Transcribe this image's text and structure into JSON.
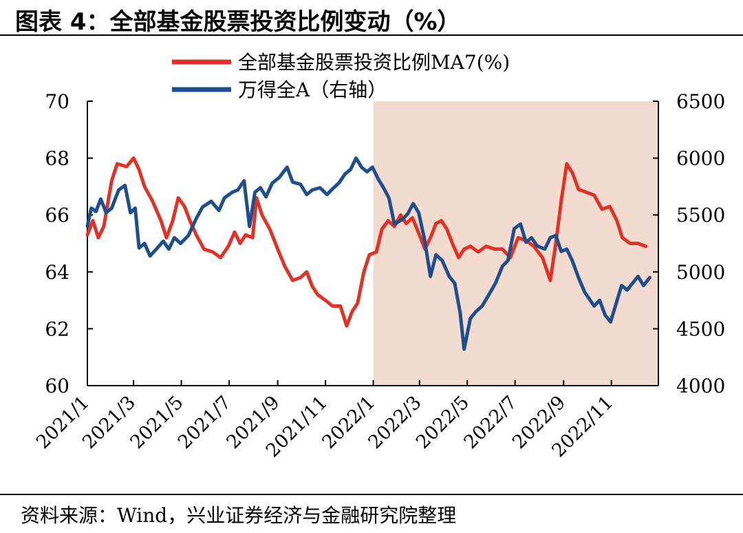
{
  "figure": {
    "title": "图表 4：全部基金股票投资比例变动（%）",
    "source": "资料来源：Wind，兴业证券经济与金融研究院整理"
  },
  "chart_data": {
    "type": "line",
    "title": "",
    "xlabel": "",
    "ylabel_left": "",
    "ylabel_right": "",
    "x_range": [
      "2021-01-01",
      "2022-12-31"
    ],
    "x_ticks": [
      "2021/1",
      "2021/3",
      "2021/5",
      "2021/7",
      "2021/9",
      "2021/11",
      "2022/1",
      "2022/3",
      "2022/5",
      "2022/7",
      "2022/9",
      "2022/11"
    ],
    "y_left": {
      "range": [
        60,
        70
      ],
      "ticks": [
        "60",
        "62",
        "64",
        "66",
        "68",
        "70"
      ]
    },
    "y_right": {
      "range": [
        4000,
        6500
      ],
      "ticks": [
        "4000",
        "4500",
        "5000",
        "5500",
        "6000",
        "6500"
      ]
    },
    "highlight_region": {
      "from": "2022-01-01",
      "to": "2022-12-31",
      "color": "#f3dccf"
    },
    "legend": {
      "position": "top"
    },
    "series": [
      {
        "name": "全部基金股票投资比例MA7(%)",
        "axis": "left",
        "color": "#e23228",
        "points": [
          [
            "2021-01-01",
            65.3
          ],
          [
            "2021-01-08",
            65.8
          ],
          [
            "2021-01-15",
            65.2
          ],
          [
            "2021-01-22",
            65.6
          ],
          [
            "2021-02-01",
            67.2
          ],
          [
            "2021-02-08",
            67.8
          ],
          [
            "2021-02-20",
            67.7
          ],
          [
            "2021-03-01",
            68.0
          ],
          [
            "2021-03-08",
            67.6
          ],
          [
            "2021-03-15",
            67.0
          ],
          [
            "2021-03-25",
            66.5
          ],
          [
            "2021-04-05",
            65.8
          ],
          [
            "2021-04-12",
            65.2
          ],
          [
            "2021-04-20",
            65.8
          ],
          [
            "2021-04-27",
            66.6
          ],
          [
            "2021-05-05",
            66.3
          ],
          [
            "2021-05-12",
            65.8
          ],
          [
            "2021-05-20",
            65.3
          ],
          [
            "2021-05-30",
            64.8
          ],
          [
            "2021-06-10",
            64.7
          ],
          [
            "2021-06-20",
            64.5
          ],
          [
            "2021-06-30",
            64.9
          ],
          [
            "2021-07-08",
            65.4
          ],
          [
            "2021-07-15",
            65.0
          ],
          [
            "2021-07-22",
            65.3
          ],
          [
            "2021-07-31",
            65.2
          ],
          [
            "2021-08-05",
            66.6
          ],
          [
            "2021-08-12",
            66.0
          ],
          [
            "2021-08-22",
            65.5
          ],
          [
            "2021-09-01",
            64.8
          ],
          [
            "2021-09-10",
            64.2
          ],
          [
            "2021-09-20",
            63.7
          ],
          [
            "2021-09-30",
            63.8
          ],
          [
            "2021-10-08",
            64.0
          ],
          [
            "2021-10-15",
            63.5
          ],
          [
            "2021-10-22",
            63.2
          ],
          [
            "2021-11-01",
            63.0
          ],
          [
            "2021-11-10",
            62.8
          ],
          [
            "2021-11-20",
            62.8
          ],
          [
            "2021-11-28",
            62.1
          ],
          [
            "2021-12-05",
            62.6
          ],
          [
            "2021-12-12",
            62.9
          ],
          [
            "2021-12-20",
            64.0
          ],
          [
            "2021-12-27",
            64.6
          ],
          [
            "2022-01-05",
            64.7
          ],
          [
            "2022-01-12",
            65.5
          ],
          [
            "2022-01-20",
            65.8
          ],
          [
            "2022-01-28",
            65.6
          ],
          [
            "2022-02-05",
            66.0
          ],
          [
            "2022-02-12",
            65.7
          ],
          [
            "2022-02-20",
            65.9
          ],
          [
            "2022-03-01",
            65.3
          ],
          [
            "2022-03-08",
            64.8
          ],
          [
            "2022-03-15",
            65.2
          ],
          [
            "2022-03-22",
            65.7
          ],
          [
            "2022-03-29",
            65.8
          ],
          [
            "2022-04-05",
            65.5
          ],
          [
            "2022-04-12",
            65.0
          ],
          [
            "2022-04-20",
            64.5
          ],
          [
            "2022-04-27",
            64.8
          ],
          [
            "2022-05-05",
            64.9
          ],
          [
            "2022-05-15",
            64.7
          ],
          [
            "2022-05-25",
            64.9
          ],
          [
            "2022-06-05",
            64.8
          ],
          [
            "2022-06-15",
            64.8
          ],
          [
            "2022-06-25",
            64.5
          ],
          [
            "2022-07-05",
            65.2
          ],
          [
            "2022-07-15",
            65.1
          ],
          [
            "2022-07-25",
            64.9
          ],
          [
            "2022-08-05",
            64.5
          ],
          [
            "2022-08-15",
            63.7
          ],
          [
            "2022-08-22",
            65.0
          ],
          [
            "2022-08-29",
            66.5
          ],
          [
            "2022-09-05",
            67.8
          ],
          [
            "2022-09-12",
            67.5
          ],
          [
            "2022-09-20",
            66.9
          ],
          [
            "2022-09-30",
            66.8
          ],
          [
            "2022-10-10",
            66.7
          ],
          [
            "2022-10-20",
            66.2
          ],
          [
            "2022-10-30",
            66.3
          ],
          [
            "2022-11-08",
            65.8
          ],
          [
            "2022-11-15",
            65.2
          ],
          [
            "2022-11-25",
            65.0
          ],
          [
            "2022-12-05",
            65.0
          ],
          [
            "2022-12-15",
            64.9
          ]
        ]
      },
      {
        "name": "万得全A（右轴）",
        "axis": "right",
        "color": "#1f4e8c",
        "points": [
          [
            "2021-01-01",
            5400
          ],
          [
            "2021-01-06",
            5560
          ],
          [
            "2021-01-12",
            5530
          ],
          [
            "2021-01-18",
            5640
          ],
          [
            "2021-01-25",
            5520
          ],
          [
            "2021-02-01",
            5560
          ],
          [
            "2021-02-10",
            5720
          ],
          [
            "2021-02-18",
            5760
          ],
          [
            "2021-02-25",
            5520
          ],
          [
            "2021-03-03",
            5560
          ],
          [
            "2021-03-08",
            5210
          ],
          [
            "2021-03-15",
            5250
          ],
          [
            "2021-03-22",
            5140
          ],
          [
            "2021-03-30",
            5200
          ],
          [
            "2021-04-08",
            5270
          ],
          [
            "2021-04-15",
            5200
          ],
          [
            "2021-04-22",
            5300
          ],
          [
            "2021-04-30",
            5250
          ],
          [
            "2021-05-10",
            5320
          ],
          [
            "2021-05-20",
            5470
          ],
          [
            "2021-05-28",
            5570
          ],
          [
            "2021-06-08",
            5620
          ],
          [
            "2021-06-18",
            5540
          ],
          [
            "2021-06-25",
            5650
          ],
          [
            "2021-07-05",
            5700
          ],
          [
            "2021-07-12",
            5720
          ],
          [
            "2021-07-20",
            5800
          ],
          [
            "2021-07-27",
            5400
          ],
          [
            "2021-08-03",
            5700
          ],
          [
            "2021-08-10",
            5740
          ],
          [
            "2021-08-17",
            5660
          ],
          [
            "2021-08-25",
            5780
          ],
          [
            "2021-09-03",
            5830
          ],
          [
            "2021-09-13",
            5920
          ],
          [
            "2021-09-20",
            5790
          ],
          [
            "2021-09-30",
            5770
          ],
          [
            "2021-10-08",
            5680
          ],
          [
            "2021-10-15",
            5720
          ],
          [
            "2021-10-25",
            5740
          ],
          [
            "2021-11-03",
            5680
          ],
          [
            "2021-11-10",
            5730
          ],
          [
            "2021-11-18",
            5780
          ],
          [
            "2021-11-26",
            5860
          ],
          [
            "2021-12-03",
            5900
          ],
          [
            "2021-12-10",
            6000
          ],
          [
            "2021-12-17",
            5920
          ],
          [
            "2021-12-24",
            5880
          ],
          [
            "2021-12-31",
            5920
          ],
          [
            "2022-01-07",
            5820
          ],
          [
            "2022-01-14",
            5740
          ],
          [
            "2022-01-21",
            5650
          ],
          [
            "2022-01-28",
            5420
          ],
          [
            "2022-02-07",
            5460
          ],
          [
            "2022-02-14",
            5510
          ],
          [
            "2022-02-21",
            5600
          ],
          [
            "2022-02-28",
            5520
          ],
          [
            "2022-03-07",
            5300
          ],
          [
            "2022-03-15",
            4960
          ],
          [
            "2022-03-22",
            5150
          ],
          [
            "2022-03-30",
            5100
          ],
          [
            "2022-04-08",
            4960
          ],
          [
            "2022-04-15",
            4900
          ],
          [
            "2022-04-22",
            4640
          ],
          [
            "2022-04-27",
            4320
          ],
          [
            "2022-05-05",
            4590
          ],
          [
            "2022-05-12",
            4650
          ],
          [
            "2022-05-20",
            4700
          ],
          [
            "2022-05-27",
            4780
          ],
          [
            "2022-06-06",
            4900
          ],
          [
            "2022-06-15",
            5050
          ],
          [
            "2022-06-22",
            5100
          ],
          [
            "2022-06-30",
            5380
          ],
          [
            "2022-07-08",
            5420
          ],
          [
            "2022-07-15",
            5260
          ],
          [
            "2022-07-22",
            5300
          ],
          [
            "2022-07-29",
            5230
          ],
          [
            "2022-08-08",
            5200
          ],
          [
            "2022-08-15",
            5300
          ],
          [
            "2022-08-22",
            5320
          ],
          [
            "2022-08-29",
            5180
          ],
          [
            "2022-09-05",
            5200
          ],
          [
            "2022-09-12",
            5100
          ],
          [
            "2022-09-20",
            4950
          ],
          [
            "2022-09-28",
            4820
          ],
          [
            "2022-10-10",
            4700
          ],
          [
            "2022-10-17",
            4750
          ],
          [
            "2022-10-24",
            4620
          ],
          [
            "2022-10-31",
            4560
          ],
          [
            "2022-11-07",
            4720
          ],
          [
            "2022-11-14",
            4880
          ],
          [
            "2022-11-21",
            4840
          ],
          [
            "2022-11-28",
            4900
          ],
          [
            "2022-12-05",
            4960
          ],
          [
            "2022-12-12",
            4880
          ],
          [
            "2022-12-20",
            4950
          ]
        ]
      }
    ]
  }
}
